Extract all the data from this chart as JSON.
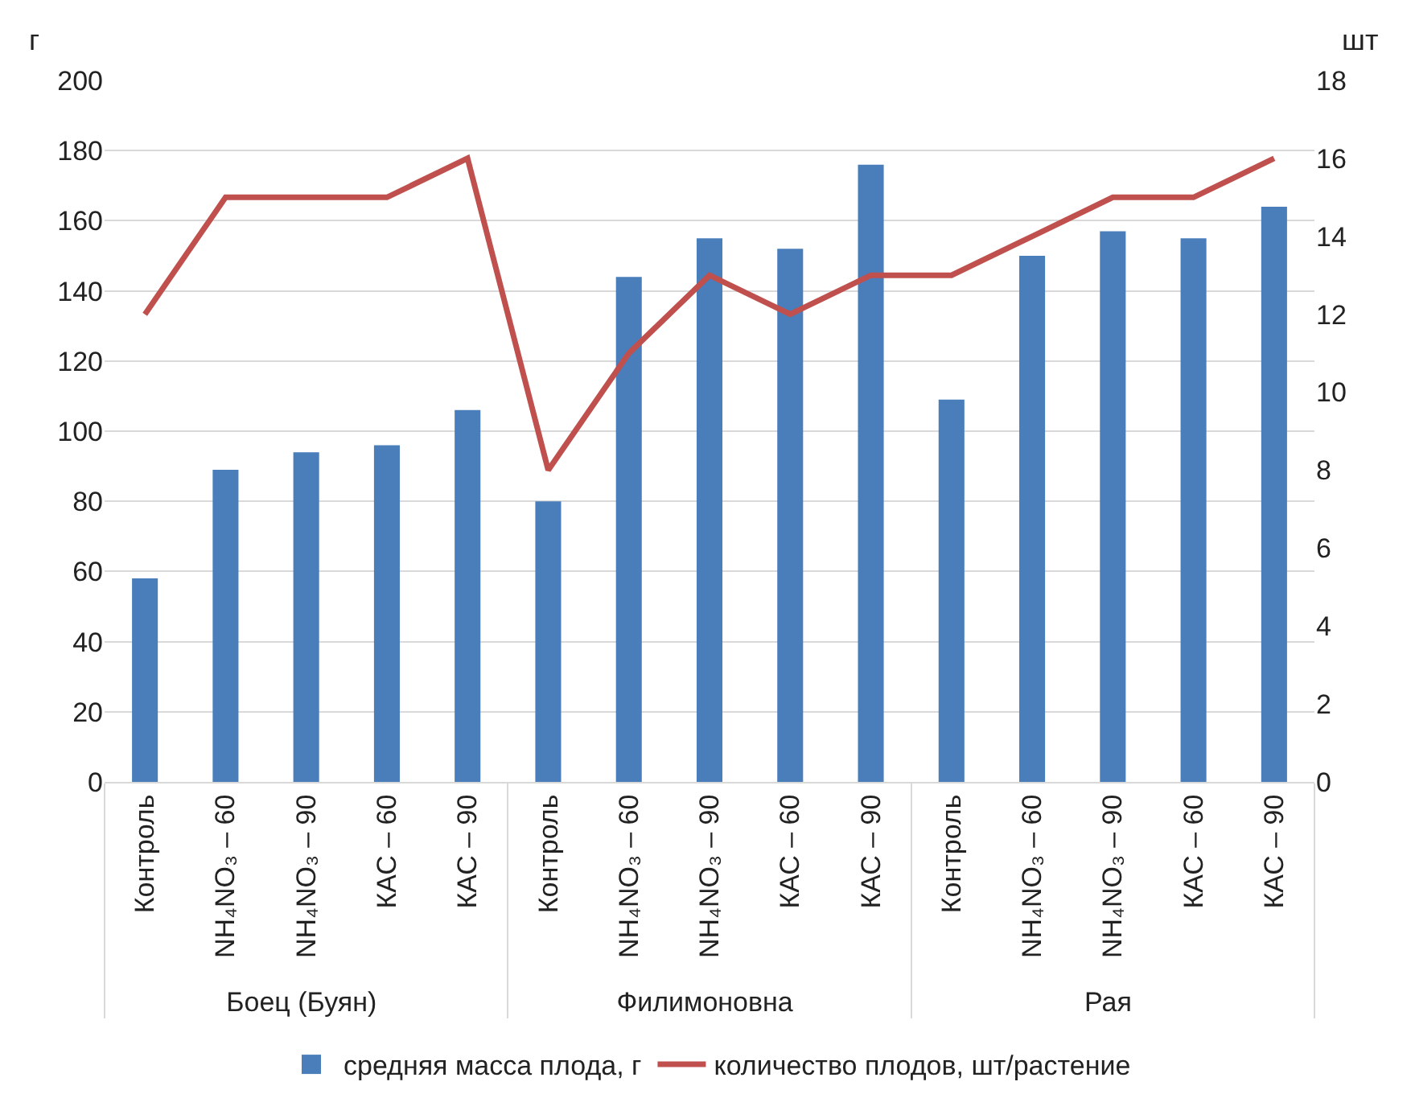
{
  "chart_data": {
    "type": "bar",
    "categories": [
      "Контроль",
      "NH₄NO₃ – 60",
      "NH₄NO₃ – 90",
      "КАС – 60",
      "КАС – 90",
      "Контроль",
      "NH₄NO₃ – 60",
      "NH₄NO₃ – 90",
      "КАС – 60",
      "КАС – 90",
      "Контроль",
      "NH₄NO₃ – 60",
      "NH₄NO₃ – 90",
      "КАС – 60",
      "КАС – 90"
    ],
    "annotations": [
      "Боец (Буян)",
      "Филимоновна",
      "Рая"
    ],
    "ylabel": "г",
    "y2label": "шт",
    "series": [
      {
        "name": "средняя масса плода, г",
        "color": "#4a7ebb",
        "values": [
          58,
          89,
          94,
          96,
          106,
          80,
          144,
          155,
          152,
          176,
          109,
          150,
          157,
          155,
          164
        ]
      },
      {
        "name": "количество плодов, шт/растение",
        "color": "#c0504d",
        "type": "line",
        "axis": "y2",
        "values": [
          12,
          15,
          15,
          15,
          16,
          8,
          11,
          13,
          12,
          13,
          13,
          14,
          15,
          15,
          16
        ]
      }
    ],
    "ylim": [
      0,
      200
    ],
    "yticks": [
      0,
      20,
      40,
      60,
      80,
      100,
      120,
      140,
      160,
      180,
      200
    ],
    "y2lim": [
      0,
      18
    ],
    "y2ticks": [
      0,
      2,
      4,
      6,
      8,
      10,
      12,
      14,
      16,
      18
    ],
    "grid": "y",
    "legend": "bottom",
    "marker": "none",
    "line_style": "solid"
  }
}
